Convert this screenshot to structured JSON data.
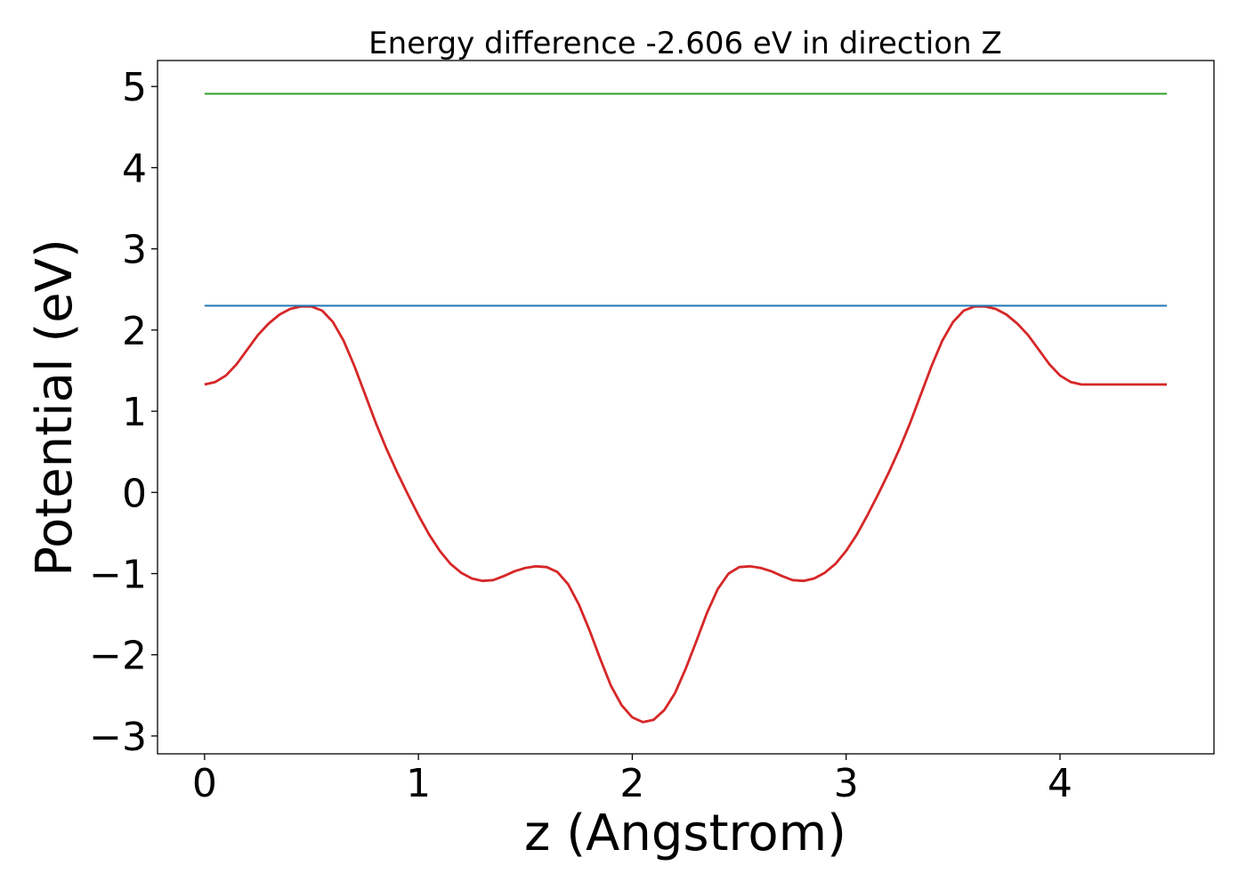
{
  "chart_data": {
    "type": "line",
    "title": "Energy difference -2.606 eV in direction Z",
    "xlabel": "z (Angstrom)",
    "ylabel": "Potential (eV)",
    "xlim": [
      -0.22,
      4.72
    ],
    "ylim": [
      -3.22,
      5.32
    ],
    "xticks": [
      0,
      1,
      2,
      3,
      4
    ],
    "xtick_labels": [
      "0",
      "1",
      "2",
      "3",
      "4"
    ],
    "yticks": [
      -3,
      -2,
      -1,
      0,
      1,
      2,
      3,
      4,
      5
    ],
    "ytick_labels": [
      "−3",
      "−2",
      "−1",
      "0",
      "1",
      "2",
      "3",
      "4",
      "5"
    ],
    "grid": false,
    "series": [
      {
        "color": "#d62728",
        "x": [
          0,
          0.05,
          0.1,
          0.15,
          0.2,
          0.25,
          0.3,
          0.35,
          0.4,
          0.45,
          0.5,
          0.55,
          0.6,
          0.65,
          0.7,
          0.75,
          0.8,
          0.85,
          0.9,
          0.95,
          1.0,
          1.05,
          1.1,
          1.15,
          1.2,
          1.25,
          1.3,
          1.35,
          1.4,
          1.45,
          1.5,
          1.55,
          1.6,
          1.65,
          1.7,
          1.75,
          1.8,
          1.85,
          1.9,
          1.95,
          2.0,
          2.05,
          2.1,
          2.15,
          2.2,
          2.25,
          2.3,
          2.35,
          2.4,
          2.45,
          2.5,
          2.55,
          2.6,
          2.65,
          2.7,
          2.75,
          2.8,
          2.85,
          2.9,
          2.95,
          3.0,
          3.05,
          3.1,
          3.15,
          3.2,
          3.25,
          3.3,
          3.35,
          3.4,
          3.45,
          3.5,
          3.55,
          3.6,
          3.65,
          3.7,
          3.75,
          3.8,
          3.85,
          3.9,
          3.95,
          4.0,
          4.05,
          4.1,
          4.15,
          4.2,
          4.25,
          4.3,
          4.35,
          4.4,
          4.45,
          4.5
        ],
        "y": [
          1.33,
          1.36,
          1.44,
          1.58,
          1.76,
          1.94,
          2.08,
          2.19,
          2.26,
          2.29,
          2.29,
          2.24,
          2.1,
          1.87,
          1.56,
          1.21,
          0.86,
          0.54,
          0.25,
          -0.02,
          -0.28,
          -0.52,
          -0.72,
          -0.88,
          -0.99,
          -1.06,
          -1.09,
          -1.08,
          -1.03,
          -0.97,
          -0.93,
          -0.91,
          -0.92,
          -0.98,
          -1.13,
          -1.38,
          -1.7,
          -2.05,
          -2.38,
          -2.62,
          -2.77,
          -2.83,
          -2.8,
          -2.68,
          -2.47,
          -2.17,
          -1.83,
          -1.48,
          -1.19,
          -1.0,
          -0.92,
          -0.91,
          -0.93,
          -0.97,
          -1.03,
          -1.08,
          -1.09,
          -1.06,
          -0.99,
          -0.88,
          -0.72,
          -0.52,
          -0.28,
          -0.02,
          0.25,
          0.54,
          0.86,
          1.21,
          1.56,
          1.87,
          2.1,
          2.24,
          2.29,
          2.29,
          2.26,
          2.19,
          2.08,
          1.94,
          1.76,
          1.58,
          1.44,
          1.36,
          1.33,
          1.33,
          1.33,
          1.33,
          1.33,
          1.33,
          1.33,
          1.33,
          1.33
        ]
      },
      {
        "color": "#1f77b4",
        "x": [
          0,
          4.5
        ],
        "y": [
          2.3,
          2.3
        ]
      },
      {
        "color": "#2ca02c",
        "x": [
          0,
          4.5
        ],
        "y": [
          4.91,
          4.91
        ]
      }
    ]
  }
}
